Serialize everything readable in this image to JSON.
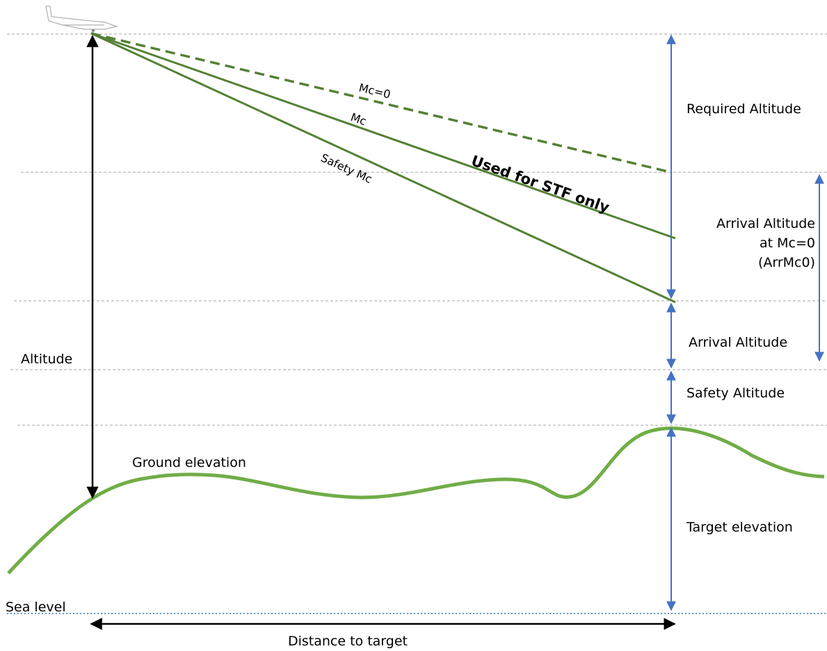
{
  "colors": {
    "glide_line": "#538135",
    "ground": "#70ad47",
    "blue_arrow": "#4472c4",
    "black_arrow": "#000000",
    "gridline": "#a6a6a6",
    "sea_level": "#2e75b6"
  },
  "icons": {
    "glider": "glider-icon"
  },
  "labels": {
    "mc0": "Mc=0",
    "mc": "Mc",
    "safety_mc": "Safety Mc",
    "used_for_stf": "Used for STF only",
    "required_altitude": "Required Altitude",
    "arrival_mc0_line1": "Arrival Altitude",
    "arrival_mc0_line2": "at Mc=0",
    "arrival_mc0_line3": "(ArrMc0)",
    "arrival_altitude": "Arrival Altitude",
    "safety_altitude": "Safety Altitude",
    "altitude": "Altitude",
    "ground_elevation": "Ground elevation",
    "target_elevation": "Target elevation",
    "sea_level": "Sea level",
    "distance_to_target": "Distance to target"
  }
}
